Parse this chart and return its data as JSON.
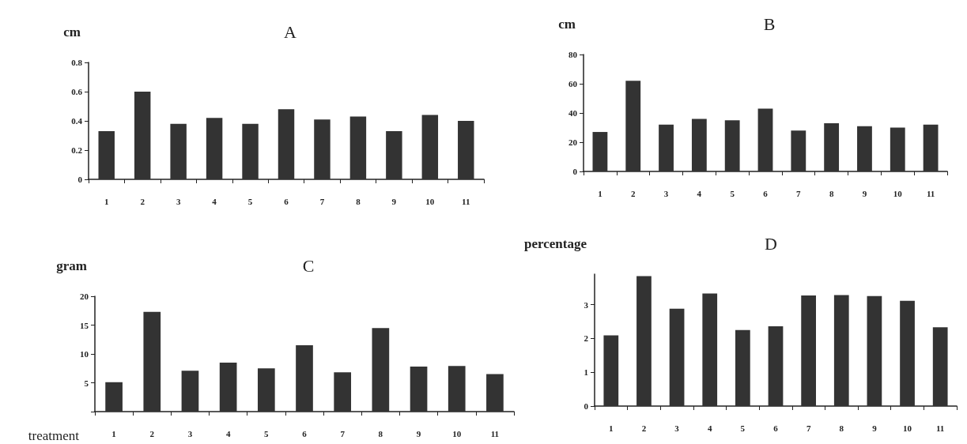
{
  "chart_data": [
    {
      "type": "bar",
      "title": "A",
      "ylabel": "cm",
      "categories": [
        "1",
        "2",
        "3",
        "4",
        "5",
        "6",
        "7",
        "8",
        "9",
        "10",
        "11"
      ],
      "values": [
        0.33,
        0.6,
        0.38,
        0.42,
        0.38,
        0.48,
        0.41,
        0.43,
        0.33,
        0.44,
        0.4
      ],
      "color": "#333333",
      "ylim": [
        0,
        0.8
      ],
      "yticks": [
        0,
        0.2,
        0.4,
        0.6,
        0.8
      ],
      "grid": false
    },
    {
      "type": "bar",
      "title": "B",
      "ylabel": "cm",
      "categories": [
        "1",
        "2",
        "3",
        "4",
        "5",
        "6",
        "7",
        "8",
        "9",
        "10",
        "11"
      ],
      "values": [
        27,
        62,
        32,
        36,
        35,
        43,
        28,
        33,
        31,
        30,
        32
      ],
      "color": "#333333",
      "ylim": [
        0,
        80
      ],
      "yticks": [
        0,
        20,
        40,
        60,
        80
      ],
      "grid": false
    },
    {
      "type": "bar",
      "title": "C",
      "ylabel": "gram",
      "xlabel": "treatment",
      "categories": [
        "1",
        "2",
        "3",
        "4",
        "5",
        "6",
        "7",
        "8",
        "9",
        "10",
        "11"
      ],
      "values": [
        5.1,
        17.3,
        7.1,
        8.5,
        7.5,
        11.5,
        6.8,
        14.5,
        7.8,
        7.9,
        6.5
      ],
      "color": "#333333",
      "ylim": [
        0,
        20
      ],
      "yticks": [
        {
          "value": 0,
          "label": null
        },
        5,
        10,
        15,
        20
      ],
      "grid": false
    },
    {
      "type": "bar",
      "title": "D",
      "ylabel": "percentage",
      "categories": [
        "1",
        "2",
        "3",
        "4",
        "5",
        "6",
        "7",
        "8",
        "9",
        "10",
        "11"
      ],
      "values": [
        2.09,
        3.84,
        2.88,
        3.33,
        2.25,
        2.36,
        3.27,
        3.28,
        3.25,
        3.11,
        2.33
      ],
      "color": "#333333",
      "ylim": [
        0,
        3.9
      ],
      "yticks": [
        0,
        1,
        2,
        3
      ],
      "grid": false
    }
  ]
}
